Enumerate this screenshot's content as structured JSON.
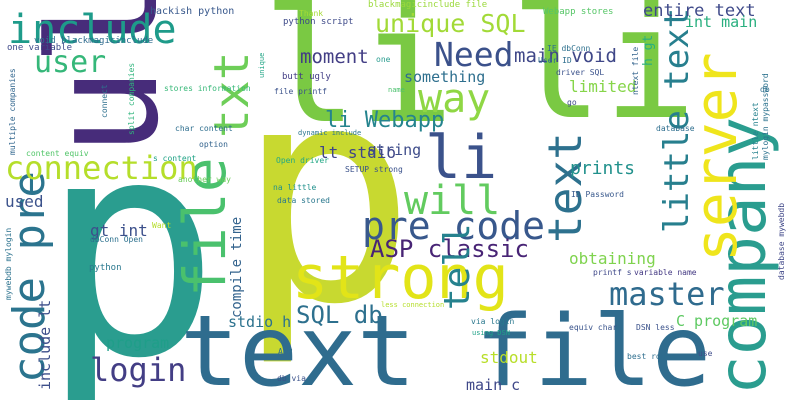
{
  "words": [
    {
      "text": "p",
      "color": "#2a9d8f"
    },
    {
      "text": "p",
      "color": "#c8d930"
    },
    {
      "text": "li",
      "color": "#7ac943"
    },
    {
      "text": "li",
      "color": "#7ac943"
    },
    {
      "text": "ul",
      "color": "#472c7a"
    },
    {
      "text": "text file",
      "color": "#2f6c8e"
    },
    {
      "text": "company",
      "color": "#2a9d8f"
    },
    {
      "text": "server",
      "color": "#efe51c"
    },
    {
      "text": "strong",
      "color": "#e2e418"
    },
    {
      "text": "file",
      "color": "#4ac16d"
    },
    {
      "text": "txt",
      "color": "#6ece58"
    },
    {
      "text": "code pre",
      "color": "#2b748e"
    },
    {
      "text": "include",
      "color": "#1e9b8a"
    },
    {
      "text": "user",
      "color": "#35b779"
    },
    {
      "text": "unique SQL",
      "color": "#a2da37"
    },
    {
      "text": "Need",
      "color": "#3b518b"
    },
    {
      "text": "way",
      "color": "#8fd744"
    },
    {
      "text": "text",
      "color": "#2d718e"
    },
    {
      "text": "little text",
      "color": "#277f8e"
    },
    {
      "text": "li",
      "color": "#3b528b"
    },
    {
      "text": "connection",
      "color": "#b5de2b"
    },
    {
      "text": "pre code",
      "color": "#38588c"
    },
    {
      "text": "will",
      "color": "#62cb5f"
    },
    {
      "text": "ASP classic",
      "color": "#482475"
    },
    {
      "text": "master",
      "color": "#2f6b8e"
    },
    {
      "text": "tell",
      "color": "#26828e"
    },
    {
      "text": "login",
      "color": "#433e85"
    },
    {
      "text": "SQL db",
      "color": "#2d708e"
    },
    {
      "text": "entire text",
      "color": "#3e4989"
    },
    {
      "text": "main void",
      "color": "#3f4788"
    },
    {
      "text": "int main",
      "color": "#29af7f"
    },
    {
      "text": "moment",
      "color": "#433e85"
    },
    {
      "text": "something",
      "color": "#2e6f8e"
    },
    {
      "text": "limited",
      "color": "#86d549"
    },
    {
      "text": "li Webapp",
      "color": "#25848e"
    },
    {
      "text": "lt stdio",
      "color": "#404688"
    },
    {
      "text": "string",
      "color": "#3e4c8a"
    },
    {
      "text": "prints",
      "color": "#21918c"
    },
    {
      "text": "obtaining",
      "color": "#7fd34e"
    },
    {
      "text": "used",
      "color": "#3b528b"
    },
    {
      "text": "gt int",
      "color": "#3c508b"
    },
    {
      "text": "compile time",
      "color": "#33638d"
    },
    {
      "text": "include lt",
      "color": "#3d4e8a"
    },
    {
      "text": "program",
      "color": "#1f9e89"
    },
    {
      "text": "stdio h",
      "color": "#2c728e"
    },
    {
      "text": "C program",
      "color": "#5ec962"
    },
    {
      "text": "stdout",
      "color": "#b8de29"
    },
    {
      "text": "main c",
      "color": "#3f4889"
    },
    {
      "text": "h gt",
      "color": "#29af7f"
    },
    {
      "text": "hackish python",
      "color": "#38588c"
    },
    {
      "text": "python script",
      "color": "#3e4a89"
    },
    {
      "text": "blackmagicinclude file",
      "color": "#9bd93c"
    },
    {
      "text": "Webapp stores",
      "color": "#56c667"
    },
    {
      "text": "one variable",
      "color": "#3e4989"
    },
    {
      "text": "void blackmagicinclude",
      "color": "#2f6b8e"
    },
    {
      "text": "multiple companies",
      "color": "#31668e"
    },
    {
      "text": "content equiv",
      "color": "#52c569"
    },
    {
      "text": "s content",
      "color": "#20a386"
    },
    {
      "text": "char content",
      "color": "#2e6e8e"
    },
    {
      "text": "option",
      "color": "#33638d"
    },
    {
      "text": "another way",
      "color": "#6ccd5a"
    },
    {
      "text": "Want",
      "color": "#b5de2b"
    },
    {
      "text": "dbConn Open",
      "color": "#2c718e"
    },
    {
      "text": "python",
      "color": "#2a788e"
    },
    {
      "text": "mywebdb mylogin",
      "color": "#2c728e"
    },
    {
      "text": "connect",
      "color": "#2d708e"
    },
    {
      "text": "split companies",
      "color": "#2fb47c"
    },
    {
      "text": "stores information",
      "color": "#37b878"
    },
    {
      "text": "dynamic include",
      "color": "#2a768e"
    },
    {
      "text": "unique",
      "color": "#21a585"
    },
    {
      "text": "Thank",
      "color": "#a5db36"
    },
    {
      "text": "butt ugly",
      "color": "#433e85"
    },
    {
      "text": "file printf",
      "color": "#3b528b"
    },
    {
      "text": "name",
      "color": "#4ac16d"
    },
    {
      "text": "one",
      "color": "#2a9d8f"
    },
    {
      "text": "IE dbConn",
      "color": "#2d708e"
    },
    {
      "text": "User ID",
      "color": "#2e6e8e"
    },
    {
      "text": "driver SQL",
      "color": "#3b528b"
    },
    {
      "text": "go",
      "color": "#3e4a89"
    },
    {
      "text": "ntext file",
      "color": "#33638d"
    },
    {
      "text": "db",
      "color": "#2e6f8e"
    },
    {
      "text": "little ntext",
      "color": "#26828e"
    },
    {
      "text": "mylogin mypassword",
      "color": "#2c728e"
    },
    {
      "text": "database mywebdb",
      "color": "#3f4788"
    },
    {
      "text": "database",
      "color": "#2e6e8e"
    },
    {
      "text": "Open driver",
      "color": "#22a884"
    },
    {
      "text": "SETUP strong",
      "color": "#3b528b"
    },
    {
      "text": "ID Password",
      "color": "#38588c"
    },
    {
      "text": "na little",
      "color": "#21918c"
    },
    {
      "text": "data stored",
      "color": "#2a788e"
    },
    {
      "text": "variable name",
      "color": "#443983"
    },
    {
      "text": "printf s",
      "color": "#3f4889"
    },
    {
      "text": "less connection",
      "color": "#b5de2b"
    },
    {
      "text": "using DSN",
      "color": "#1fa187"
    },
    {
      "text": "via login",
      "color": "#2a788e"
    },
    {
      "text": "equiv char",
      "color": "#3a548c"
    },
    {
      "text": "DSN less",
      "color": "#3b528b"
    },
    {
      "text": "best route",
      "color": "#2e6e8e"
    },
    {
      "text": "use",
      "color": "#3e4c8a"
    },
    {
      "text": "APP",
      "color": "#2e6f8e"
    },
    {
      "text": "db via",
      "color": "#3b528b"
    }
  ]
}
